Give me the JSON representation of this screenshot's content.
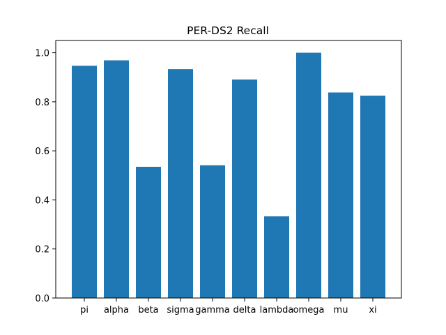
{
  "chart_data": {
    "type": "bar",
    "title": "PER-DS2 Recall",
    "xlabel": "",
    "ylabel": "",
    "categories": [
      "pi",
      "alpha",
      "beta",
      "sigma",
      "gamma",
      "delta",
      "lambda",
      "omega",
      "mu",
      "xi"
    ],
    "values": [
      0.947,
      0.969,
      0.535,
      0.933,
      0.541,
      0.891,
      0.333,
      1.0,
      0.838,
      0.825
    ],
    "ylim": [
      0,
      1.05
    ],
    "yticks": [
      0.0,
      0.2,
      0.4,
      0.6,
      0.8,
      1.0
    ],
    "ytick_labels": [
      "0.0",
      "0.2",
      "0.4",
      "0.6",
      "0.8",
      "1.0"
    ],
    "bar_color": "#1f77b4",
    "grid": false,
    "legend": "none"
  }
}
